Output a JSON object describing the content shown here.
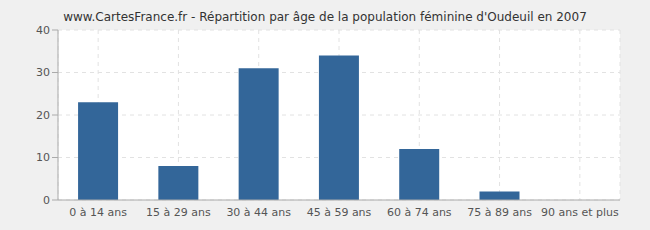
{
  "chart_data": {
    "type": "bar",
    "title": "www.CartesFrance.fr - Répartition par âge de la population féminine d'Oudeuil en 2007",
    "categories": [
      "0 à 14 ans",
      "15 à 29 ans",
      "30 à 44 ans",
      "45 à 59 ans",
      "60 à 74 ans",
      "75 à 89 ans",
      "90 ans et plus"
    ],
    "values": [
      23,
      8,
      31,
      34,
      12,
      2,
      0
    ],
    "color": "#336699",
    "ylim": [
      0,
      40
    ],
    "yticks": [
      0,
      10,
      20,
      30,
      40
    ],
    "grid": true
  }
}
